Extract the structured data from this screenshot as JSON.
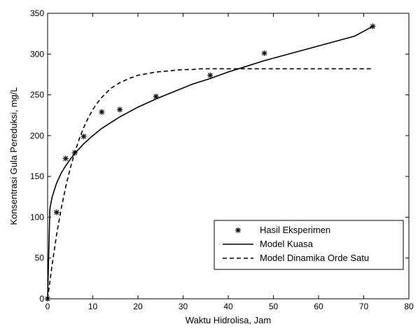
{
  "chart_data": {
    "type": "line",
    "xlabel": "Waktu Hidrolisa, Jam",
    "ylabel": "Konsentrasi Gula Pereduksi, mg/L",
    "xlim": [
      0,
      80
    ],
    "ylim": [
      0,
      350
    ],
    "xticks": [
      0,
      10,
      20,
      30,
      40,
      50,
      60,
      70,
      80
    ],
    "yticks": [
      0,
      50,
      100,
      150,
      200,
      250,
      300,
      350
    ],
    "grid": false,
    "legend_position": "lower-right",
    "series": [
      {
        "name": "Hasil Eksperimen",
        "style": "markers",
        "marker": "asterisk",
        "color": "#000000",
        "x": [
          0,
          2,
          4,
          6,
          8,
          12,
          16,
          24,
          36,
          48,
          72
        ],
        "y": [
          0,
          106,
          172,
          179,
          199,
          229,
          232,
          248,
          274,
          301,
          334
        ]
      },
      {
        "name": "Model Kuasa",
        "style": "solid",
        "color": "#000000",
        "x": [
          0,
          0.5,
          1,
          2,
          3,
          4,
          5,
          6,
          8,
          10,
          12,
          14,
          16,
          18,
          20,
          24,
          28,
          32,
          36,
          40,
          44,
          48,
          52,
          56,
          60,
          64,
          68,
          72
        ],
        "y": [
          0,
          110,
          125,
          142,
          154,
          163,
          171,
          178,
          190,
          200,
          209,
          216,
          223,
          229,
          235,
          245,
          254,
          263,
          270,
          278,
          285,
          292,
          298,
          304,
          310,
          316,
          322,
          334
        ]
      },
      {
        "name": "Model Dinamika Orde Satu",
        "style": "dashed",
        "color": "#000000",
        "x": [
          0,
          1,
          2,
          3,
          4,
          5,
          6,
          7,
          8,
          9,
          10,
          11,
          12,
          14,
          16,
          18,
          20,
          22,
          24,
          26,
          28,
          30,
          32,
          34,
          36,
          40,
          48,
          56,
          64,
          72
        ],
        "y": [
          0,
          42,
          79,
          110,
          137,
          160,
          179,
          196,
          210,
          222,
          232,
          240,
          247,
          258,
          265,
          270,
          274,
          276,
          278,
          279,
          280,
          281,
          281,
          282,
          282,
          282,
          282,
          282,
          282,
          282
        ]
      }
    ]
  }
}
